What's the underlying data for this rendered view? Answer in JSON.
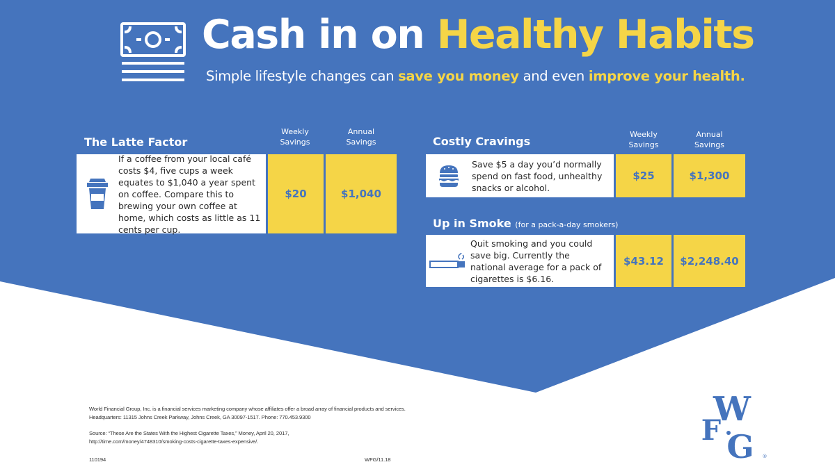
{
  "colors": {
    "blue": "#4574bd",
    "yellow": "#f5d547",
    "white": "#ffffff"
  },
  "header": {
    "icon": "money-bill-icon",
    "title_part1": "Cash in on ",
    "title_part2": "Healthy Habits",
    "subtitle_part1": "Simple lifestyle changes can ",
    "subtitle_bold1": "save you money",
    "subtitle_part2": " and even ",
    "subtitle_bold2": "improve your health."
  },
  "sections": [
    {
      "id": "latte",
      "title": "The Latte Factor",
      "note": "",
      "icon": "coffee-cup-icon",
      "weekly_header": "Weekly\nSavings",
      "annual_header": "Annual\nSavings",
      "description": "If a coffee from your local café costs $4, five cups a week equates to $1,040 a year spent on coffee. Compare this to brewing your own coffee at home, which costs as little as 11 cents per cup.",
      "weekly": "$20",
      "annual": "$1,040"
    },
    {
      "id": "cravings",
      "title": "Costly Cravings",
      "note": "",
      "icon": "burger-icon",
      "weekly_header": "Weekly\nSavings",
      "annual_header": "Annual\nSavings",
      "description": "Save $5 a day you’d normally spend on fast food, unhealthy snacks or alcohol.",
      "weekly": "$25",
      "annual": "$1,300"
    },
    {
      "id": "smoke",
      "title": "Up in Smoke",
      "note": "(for a pack-a-day smokers)",
      "icon": "cigarette-icon",
      "description": "Quit smoking and you could save big. Currently the national average for a pack of cigarettes is $6.16.",
      "weekly": "$43.12",
      "annual": "$2,248.40"
    }
  ],
  "footer": {
    "line1": "World Financial Group, Inc. is a financial services marketing company whose affiliates offer a broad array of financial products and services.",
    "line2": "Headquarters: 11315 Johns Creek Parkway, Johns Creek, GA 30097-1517. Phone: 770.453.9300",
    "source1": "Source: “These Are the States With the Highest Cigarette Taxes,” Money, April 20, 2017,",
    "source2": "http://time.com/money/4748310/smoking-costs-cigarette-taxes-expensive/.",
    "code_left": "110194",
    "code_right": "WFG/11.18"
  },
  "logo": {
    "top": "W",
    "left": "F",
    "bottom": "G",
    "mark": "®"
  }
}
